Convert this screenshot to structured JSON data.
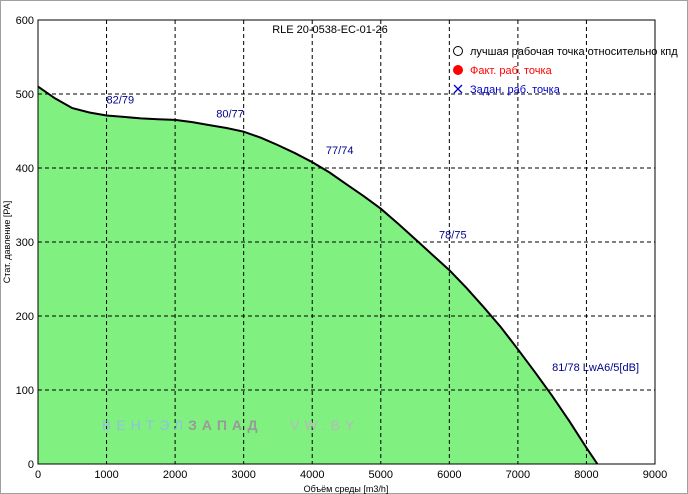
{
  "chart_data": {
    "type": "area",
    "title": "RLE 20-0538-EC-01-26",
    "xlabel": "Объём среды [m3/h]",
    "ylabel": "Стат. давление [PA]",
    "xlim": [
      0,
      9000
    ],
    "ylim": [
      0,
      600
    ],
    "xticks": [
      0,
      1000,
      2000,
      3000,
      4000,
      5000,
      6000,
      7000,
      8000,
      9000
    ],
    "yticks": [
      0,
      100,
      200,
      300,
      400,
      500,
      600
    ],
    "grid": true,
    "fill_color": "#80f080",
    "line_color": "#000000",
    "series": [
      {
        "x": [
          0,
          250,
          500,
          750,
          1000,
          1250,
          1500,
          1750,
          2000,
          2250,
          2500,
          2750,
          3000,
          3250,
          3500,
          3750,
          4000,
          4250,
          4500,
          4750,
          5000,
          5250,
          5500,
          5750,
          6000,
          6250,
          6500,
          6750,
          7000,
          7250,
          7500,
          7750,
          8000,
          8160
        ],
        "y": [
          510,
          494,
          481,
          475,
          471,
          469,
          467,
          466,
          465,
          462,
          458,
          454,
          449,
          441,
          431,
          420,
          408,
          394,
          378,
          362,
          345,
          325,
          304,
          283,
          262,
          238,
          212,
          185,
          155,
          124,
          92,
          58,
          22,
          0
        ]
      }
    ],
    "annotations": [
      {
        "text": "82/79",
        "x": 1000,
        "y": 487
      },
      {
        "text": "80/77",
        "x": 2600,
        "y": 468
      },
      {
        "text": "77/74",
        "x": 4200,
        "y": 419
      },
      {
        "text": "78/75",
        "x": 5850,
        "y": 305
      },
      {
        "text": "81/78 LwA6/5[dB]",
        "x": 7500,
        "y": 126
      }
    ],
    "legend": {
      "position": "top-right",
      "items": [
        {
          "label": "лучшая рабочая точка относительно кпд",
          "marker": "open-circle",
          "color": "#000000"
        },
        {
          "label": "Факт. раб. точка",
          "marker": "filled-circle",
          "color": "#ff0000"
        },
        {
          "label": "Задан. раб. точка",
          "marker": "cross",
          "color": "#0000cc"
        }
      ]
    }
  },
  "watermark": {
    "part1": "ВЕНТЭЛ",
    "part2": "ЗАПАД",
    "part3": "VW.BY",
    "color1": "#8fc0e0",
    "color2": "#999999",
    "color3": "#b8b8b8"
  }
}
